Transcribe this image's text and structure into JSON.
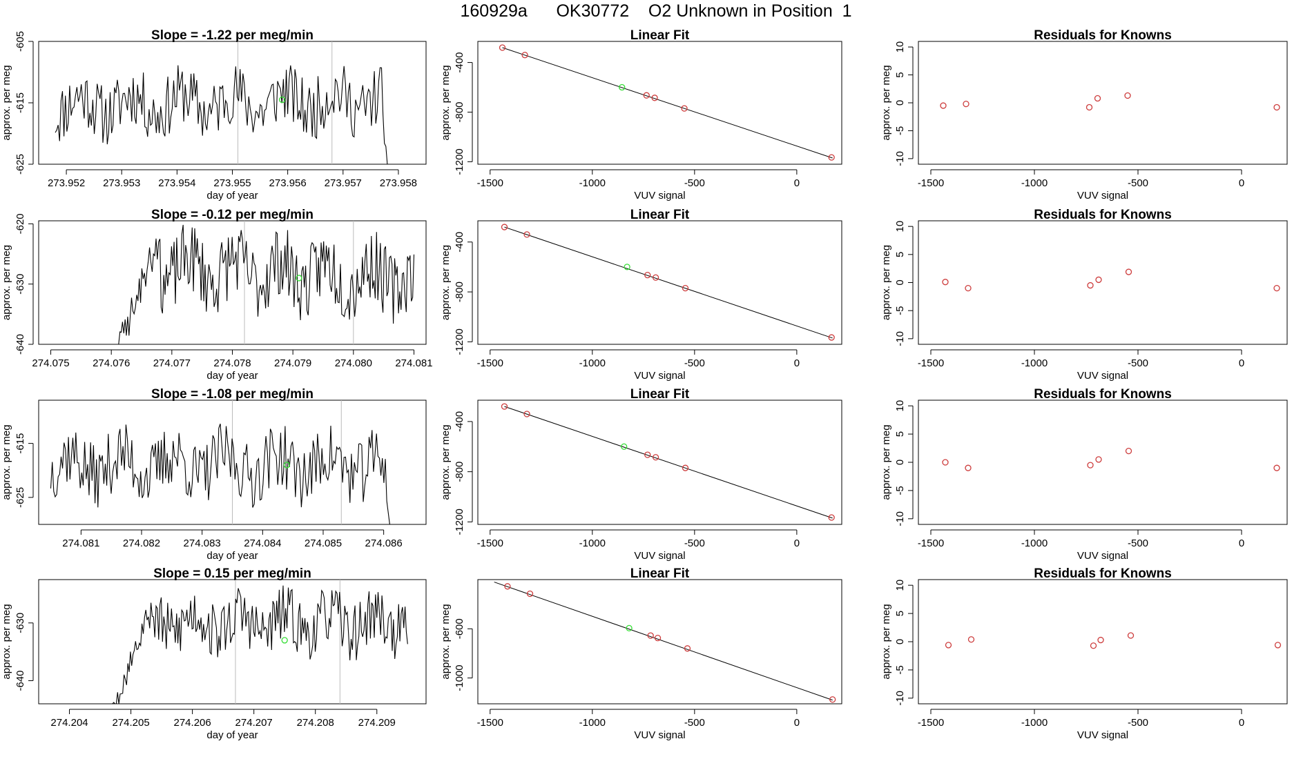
{
  "figure": {
    "title": "160929a      OK30772    O2 Unknown in Position  1",
    "colors": {
      "line": "#000000",
      "known_point": "#cd3c3c",
      "unknown_point": "#33dd33",
      "marker_line": "#bbbbbb",
      "fit_line": "#000000"
    }
  },
  "chart_data": [
    {
      "type": "line",
      "row": 1,
      "col": 1,
      "title": "Slope =  -1.22  per meg/min",
      "xlabel": "day of year",
      "ylabel": "approx. per meg",
      "xlim": [
        273.9515,
        273.9585
      ],
      "ylim": [
        -625,
        -605
      ],
      "xticks": [
        273.952,
        273.953,
        273.954,
        273.955,
        273.956,
        273.957,
        273.958
      ],
      "xtick_labels": [
        "273.952",
        "273.953",
        "273.954",
        "273.955",
        "273.956",
        "273.957",
        "273.958"
      ],
      "yticks": [
        -625,
        -615,
        -605
      ],
      "ytick_labels": [
        "-625",
        "-615",
        "-605"
      ],
      "x_start": 273.9518,
      "x_end": 273.9578,
      "baseline": -615,
      "amplitude": 5,
      "trend": 0.5,
      "seed": 11,
      "ramp": {
        "start": 273.9577,
        "to": -626
      },
      "markers": [
        273.9551,
        273.9568
      ],
      "unknown_point": {
        "x": 273.9559,
        "y": -614.5
      }
    },
    {
      "type": "scatter",
      "row": 1,
      "col": 2,
      "title": "Linear Fit",
      "xlabel": "VUV signal",
      "ylabel": "approx. per meg",
      "xlim": [
        -1560,
        220
      ],
      "ylim": [
        -1220,
        -230
      ],
      "xticks": [
        -1500,
        -1000,
        -500,
        0
      ],
      "xtick_labels": [
        "-1500",
        "-1000",
        "-500",
        "0"
      ],
      "yticks": [
        -1200,
        -800,
        -400
      ],
      "ytick_labels": [
        "-1200",
        "-800",
        "-400"
      ],
      "line": {
        "x0": -1440,
        "y0": -280,
        "x1": 175,
        "y1": -1170
      },
      "points": [
        {
          "x": -1440,
          "y": -280
        },
        {
          "x": -1330,
          "y": -340
        },
        {
          "x": -735,
          "y": -665
        },
        {
          "x": -695,
          "y": -685
        },
        {
          "x": -550,
          "y": -770
        },
        {
          "x": 170,
          "y": -1165
        }
      ],
      "unknown": {
        "x": -855,
        "y": -600
      }
    },
    {
      "type": "scatter",
      "row": 1,
      "col": 3,
      "title": "Residuals for Knowns",
      "xlabel": "VUV signal",
      "ylabel": "approx. per meg",
      "xlim": [
        -1560,
        220
      ],
      "ylim": [
        -11,
        11
      ],
      "xticks": [
        -1500,
        -1000,
        -500,
        0
      ],
      "xtick_labels": [
        "-1500",
        "-1000",
        "-500",
        "0"
      ],
      "yticks": [
        -10,
        -5,
        0,
        5,
        10
      ],
      "ytick_labels": [
        "-10",
        "-5",
        "0",
        "5",
        "10"
      ],
      "points": [
        {
          "x": -1440,
          "y": -0.5
        },
        {
          "x": -1330,
          "y": -0.2
        },
        {
          "x": -735,
          "y": -0.8
        },
        {
          "x": -695,
          "y": 0.8
        },
        {
          "x": -550,
          "y": 1.3
        },
        {
          "x": 170,
          "y": -0.8
        }
      ]
    },
    {
      "type": "line",
      "row": 2,
      "col": 1,
      "title": "Slope =  -0.12  per meg/min",
      "xlabel": "day of year",
      "ylabel": "approx. per meg",
      "xlim": [
        274.0748,
        274.0812
      ],
      "ylim": [
        -640,
        -619.5
      ],
      "xticks": [
        274.075,
        274.076,
        274.077,
        274.078,
        274.079,
        274.08,
        274.081
      ],
      "xtick_labels": [
        "274.075",
        "274.076",
        "274.077",
        "274.078",
        "274.079",
        "274.080",
        "274.081"
      ],
      "yticks": [
        -640,
        -630,
        -620
      ],
      "ytick_labels": [
        "-640",
        "-630",
        "-620"
      ],
      "x_start": 274.0761,
      "x_end": 274.081,
      "baseline": -628,
      "amplitude": 6,
      "trend": -1,
      "seed": 23,
      "ramp": {
        "start": 274.0761,
        "end": 274.0768,
        "from": -641,
        "to": -622
      },
      "markers": [
        274.0782,
        274.08
      ],
      "unknown_point": {
        "x": 274.0791,
        "y": -629
      }
    },
    {
      "type": "scatter",
      "row": 2,
      "col": 2,
      "title": "Linear Fit",
      "xlabel": "VUV signal",
      "ylabel": "approx. per meg",
      "xlim": [
        -1560,
        220
      ],
      "ylim": [
        -1220,
        -230
      ],
      "xticks": [
        -1500,
        -1000,
        -500,
        0
      ],
      "xtick_labels": [
        "-1500",
        "-1000",
        "-500",
        "0"
      ],
      "yticks": [
        -1200,
        -800,
        -400
      ],
      "ytick_labels": [
        "-1200",
        "-800",
        "-400"
      ],
      "line": {
        "x0": -1430,
        "y0": -280,
        "x1": 175,
        "y1": -1170
      },
      "points": [
        {
          "x": -1430,
          "y": -280
        },
        {
          "x": -1320,
          "y": -340
        },
        {
          "x": -730,
          "y": -665
        },
        {
          "x": -690,
          "y": -685
        },
        {
          "x": -545,
          "y": -770
        },
        {
          "x": 170,
          "y": -1165
        }
      ],
      "unknown": {
        "x": -830,
        "y": -600
      }
    },
    {
      "type": "scatter",
      "row": 2,
      "col": 3,
      "title": "Residuals for Knowns",
      "xlabel": "VUV signal",
      "ylabel": "approx. per meg",
      "xlim": [
        -1560,
        220
      ],
      "ylim": [
        -11,
        11
      ],
      "xticks": [
        -1500,
        -1000,
        -500,
        0
      ],
      "xtick_labels": [
        "-1500",
        "-1000",
        "-500",
        "0"
      ],
      "yticks": [
        -10,
        -5,
        0,
        5,
        10
      ],
      "ytick_labels": [
        "-10",
        "-5",
        "0",
        "5",
        "10"
      ],
      "points": [
        {
          "x": -1430,
          "y": 0.1
        },
        {
          "x": -1320,
          "y": -1
        },
        {
          "x": -730,
          "y": -0.5
        },
        {
          "x": -690,
          "y": 0.5
        },
        {
          "x": -545,
          "y": 1.9
        },
        {
          "x": 170,
          "y": -1
        }
      ]
    },
    {
      "type": "line",
      "row": 3,
      "col": 1,
      "title": "Slope =  -1.08  per meg/min",
      "xlabel": "day of year",
      "ylabel": "approx. per meg",
      "xlim": [
        274.0803,
        274.0867
      ],
      "ylim": [
        -630,
        -607
      ],
      "xticks": [
        274.081,
        274.082,
        274.083,
        274.084,
        274.085,
        274.086
      ],
      "xtick_labels": [
        "274.081",
        "274.082",
        "274.083",
        "274.084",
        "274.085",
        "274.086"
      ],
      "yticks": [
        -625,
        -615
      ],
      "ytick_labels": [
        "-625",
        "-615"
      ],
      "x_start": 274.0805,
      "x_end": 274.0861,
      "baseline": -619,
      "amplitude": 6,
      "trend": 0,
      "seed": 37,
      "ramp": {
        "start": 274.086,
        "to": -631
      },
      "markers": [
        274.0835,
        274.0853
      ],
      "unknown_point": {
        "x": 274.0844,
        "y": -619
      }
    },
    {
      "type": "scatter",
      "row": 3,
      "col": 2,
      "title": "Linear Fit",
      "xlabel": "VUV signal",
      "ylabel": "approx. per meg",
      "xlim": [
        -1560,
        220
      ],
      "ylim": [
        -1220,
        -230
      ],
      "xticks": [
        -1500,
        -1000,
        -500,
        0
      ],
      "xtick_labels": [
        "-1500",
        "-1000",
        "-500",
        "0"
      ],
      "yticks": [
        -1200,
        -800,
        -400
      ],
      "ytick_labels": [
        "-1200",
        "-800",
        "-400"
      ],
      "line": {
        "x0": -1430,
        "y0": -280,
        "x1": 175,
        "y1": -1170
      },
      "points": [
        {
          "x": -1430,
          "y": -280
        },
        {
          "x": -1320,
          "y": -340
        },
        {
          "x": -730,
          "y": -665
        },
        {
          "x": -690,
          "y": -685
        },
        {
          "x": -545,
          "y": -770
        },
        {
          "x": 170,
          "y": -1165
        }
      ],
      "unknown": {
        "x": -845,
        "y": -600
      }
    },
    {
      "type": "scatter",
      "row": 3,
      "col": 3,
      "title": "Residuals for Knowns",
      "xlabel": "VUV signal",
      "ylabel": "approx. per meg",
      "xlim": [
        -1560,
        220
      ],
      "ylim": [
        -11,
        11
      ],
      "xticks": [
        -1500,
        -1000,
        -500,
        0
      ],
      "xtick_labels": [
        "-1500",
        "-1000",
        "-500",
        "0"
      ],
      "yticks": [
        -10,
        -5,
        0,
        5,
        10
      ],
      "ytick_labels": [
        "-10",
        "-5",
        "0",
        "5",
        "10"
      ],
      "points": [
        {
          "x": -1430,
          "y": 0
        },
        {
          "x": -1320,
          "y": -1
        },
        {
          "x": -730,
          "y": -0.5
        },
        {
          "x": -690,
          "y": 0.5
        },
        {
          "x": -545,
          "y": 2
        },
        {
          "x": 170,
          "y": -1
        }
      ]
    },
    {
      "type": "line",
      "row": 4,
      "col": 1,
      "title": "Slope =  0.15  per meg/min",
      "xlabel": "day of year",
      "ylabel": "approx. per meg",
      "xlim": [
        274.2035,
        274.2098
      ],
      "ylim": [
        -644,
        -622.5
      ],
      "xticks": [
        274.204,
        274.205,
        274.206,
        274.207,
        274.208,
        274.209
      ],
      "xtick_labels": [
        "274.204",
        "274.205",
        "274.206",
        "274.207",
        "274.208",
        "274.209"
      ],
      "yticks": [
        -640,
        -630
      ],
      "ytick_labels": [
        "-640",
        "-630"
      ],
      "x_start": 274.2047,
      "x_end": 274.2095,
      "baseline": -630,
      "amplitude": 5,
      "trend": 0,
      "seed": 53,
      "ramp": {
        "start": 274.2047,
        "end": 274.2053,
        "from": -645,
        "to": -628
      },
      "markers": [
        274.2067,
        274.2084
      ],
      "unknown_point": {
        "x": 274.2075,
        "y": -633
      }
    },
    {
      "type": "scatter",
      "row": 4,
      "col": 2,
      "title": "Linear Fit",
      "xlabel": "VUV signal",
      "ylabel": "approx. per meg",
      "xlim": [
        -1560,
        220
      ],
      "ylim": [
        -1210,
        -200
      ],
      "xticks": [
        -1500,
        -1000,
        -500,
        0
      ],
      "xtick_labels": [
        "-1500",
        "-1000",
        "-500",
        "0"
      ],
      "yticks": [
        -1000,
        -600
      ],
      "ytick_labels": [
        "-1000",
        "-600"
      ],
      "line": {
        "x0": -1480,
        "y0": -220,
        "x1": 175,
        "y1": -1180
      },
      "points": [
        {
          "x": -1415,
          "y": -255
        },
        {
          "x": -1305,
          "y": -315
        },
        {
          "x": -715,
          "y": -655
        },
        {
          "x": -680,
          "y": -675
        },
        {
          "x": -535,
          "y": -760
        },
        {
          "x": 175,
          "y": -1175
        }
      ],
      "unknown": {
        "x": -820,
        "y": -595
      }
    },
    {
      "type": "scatter",
      "row": 4,
      "col": 3,
      "title": "Residuals for Knowns",
      "xlabel": "VUV signal",
      "ylabel": "approx. per meg",
      "xlim": [
        -1560,
        220
      ],
      "ylim": [
        -11,
        11
      ],
      "xticks": [
        -1500,
        -1000,
        -500,
        0
      ],
      "xtick_labels": [
        "-1500",
        "-1000",
        "-500",
        "0"
      ],
      "yticks": [
        -10,
        -5,
        0,
        5,
        10
      ],
      "ytick_labels": [
        "-10",
        "-5",
        "0",
        "5",
        "10"
      ],
      "points": [
        {
          "x": -1415,
          "y": -0.6
        },
        {
          "x": -1305,
          "y": 0.4
        },
        {
          "x": -715,
          "y": -0.7
        },
        {
          "x": -680,
          "y": 0.3
        },
        {
          "x": -535,
          "y": 1.1
        },
        {
          "x": 175,
          "y": -0.6
        }
      ]
    }
  ]
}
